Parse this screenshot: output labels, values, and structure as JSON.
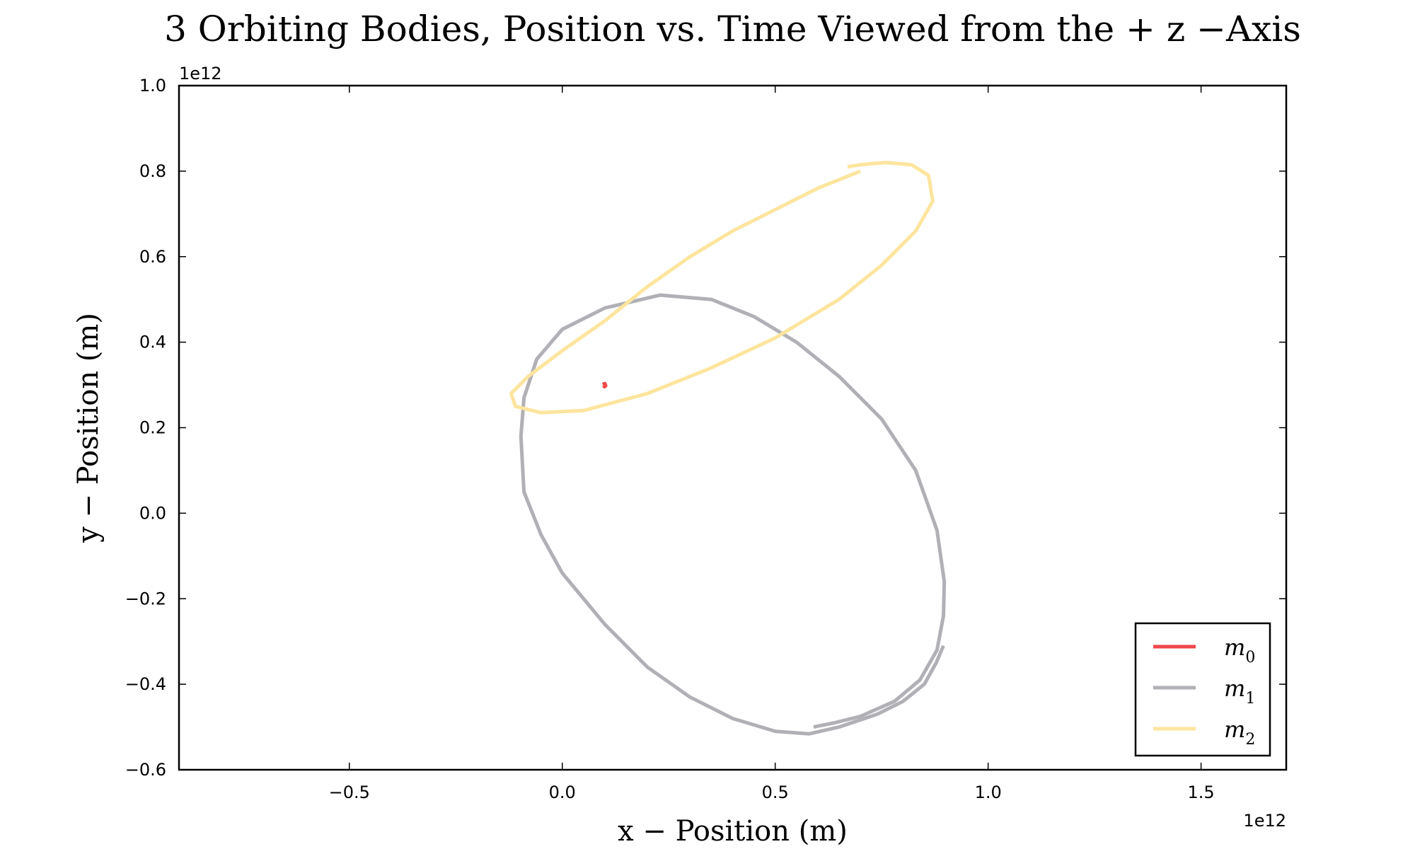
{
  "chart_data": {
    "type": "line",
    "title": "3 Orbiting Bodies,  Position vs.  Time Viewed from the + z −Axis",
    "xlabel": "x − Position (m)",
    "ylabel": "y − Position (m)",
    "x_offset_label": "1e12",
    "y_offset_label": "1e12",
    "xlim": [
      -0.9,
      1.7
    ],
    "ylim": [
      -0.6,
      1.0
    ],
    "x_ticks": [
      -0.5,
      0.0,
      0.5,
      1.0,
      1.5
    ],
    "x_tick_labels": [
      "−0.5",
      "0.0",
      "0.5",
      "1.0",
      "1.5"
    ],
    "y_ticks": [
      -0.6,
      -0.4,
      -0.2,
      0.0,
      0.2,
      0.4,
      0.6,
      0.8,
      1.0
    ],
    "y_tick_labels": [
      "−0.6",
      "−0.4",
      "−0.2",
      "0.0",
      "0.2",
      "0.4",
      "0.6",
      "0.8",
      "1.0"
    ],
    "grid": false,
    "legend_position": "bottom-right",
    "series": [
      {
        "name": "m0",
        "legend_base": "m",
        "legend_sub": "0",
        "color": "#f0474a",
        "x": [
          0.095,
          0.1,
          0.102,
          0.099,
          0.097
        ],
        "y": [
          0.301,
          0.303,
          0.298,
          0.296,
          0.299
        ]
      },
      {
        "name": "m1",
        "legend_base": "m",
        "legend_sub": "1",
        "color": "#b0b0b6",
        "x": [
          0.895,
          0.878,
          0.85,
          0.8,
          0.74,
          0.65,
          0.58,
          0.5,
          0.4,
          0.3,
          0.2,
          0.1,
          0.0,
          -0.05,
          -0.09,
          -0.097,
          -0.09,
          -0.06,
          0.0,
          0.1,
          0.23,
          0.35,
          0.45,
          0.55,
          0.65,
          0.75,
          0.83,
          0.88,
          0.897,
          0.895,
          0.88,
          0.84,
          0.78,
          0.7,
          0.64,
          0.59
        ],
        "y": [
          -0.31,
          -0.35,
          -0.4,
          -0.44,
          -0.47,
          -0.5,
          -0.516,
          -0.51,
          -0.48,
          -0.43,
          -0.36,
          -0.26,
          -0.14,
          -0.05,
          0.05,
          0.18,
          0.27,
          0.36,
          0.43,
          0.48,
          0.51,
          0.5,
          0.46,
          0.4,
          0.32,
          0.22,
          0.1,
          -0.04,
          -0.16,
          -0.24,
          -0.32,
          -0.39,
          -0.44,
          -0.475,
          -0.49,
          -0.5
        ]
      },
      {
        "name": "m2",
        "legend_base": "m",
        "legend_sub": "2",
        "color": "#fde59e",
        "x": [
          0.7,
          0.6,
          0.5,
          0.4,
          0.3,
          0.2,
          0.1,
          0.0,
          -0.08,
          -0.12,
          -0.11,
          -0.05,
          0.05,
          0.2,
          0.35,
          0.5,
          0.65,
          0.75,
          0.83,
          0.87,
          0.86,
          0.82,
          0.76,
          0.7,
          0.67
        ],
        "y": [
          0.8,
          0.76,
          0.71,
          0.66,
          0.6,
          0.53,
          0.45,
          0.38,
          0.32,
          0.28,
          0.25,
          0.235,
          0.24,
          0.28,
          0.34,
          0.41,
          0.5,
          0.58,
          0.66,
          0.73,
          0.79,
          0.815,
          0.82,
          0.815,
          0.81
        ]
      }
    ]
  }
}
